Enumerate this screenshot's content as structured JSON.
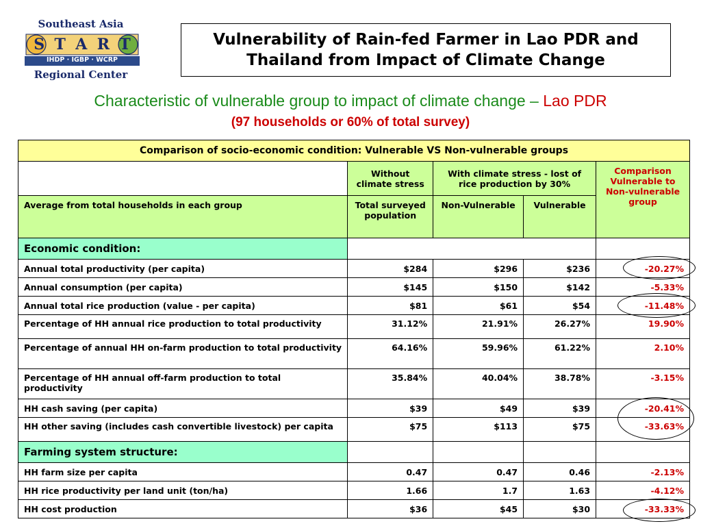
{
  "logo": {
    "line1": "Southeast Asia",
    "letters": [
      "S",
      "T",
      "A",
      "R",
      "T"
    ],
    "line3": "IHDP · IGBP · WCRP",
    "line4": "Regional Center"
  },
  "title": {
    "line1": "Vulnerability of Rain-fed Farmer in Lao PDR and",
    "line2": "Thailand from Impact of Climate Change"
  },
  "subtitle": {
    "green": "Characteristic of vulnerable group to impact of climate change – ",
    "red": "Lao PDR",
    "line2": "(97 households or 60% of total survey)"
  },
  "table": {
    "caption": "Comparison of socio-economic condition: Vulnerable VS Non-vulnerable groups",
    "head1": {
      "without": "Without climate stress",
      "with": "With climate stress - lost of rice production by 30%",
      "comparison": "Comparison Vulnerable to Non-vulnerable group"
    },
    "head2": {
      "label": "Average from total households in each group",
      "total": "Total surveyed population",
      "nonvul": "Non-Vulnerable",
      "vul": "Vulnerable"
    },
    "sections": [
      {
        "title": "Economic condition:",
        "rows": [
          {
            "label": "Annual total productivity (per capita)",
            "total": "$284",
            "nonvul": "$296",
            "vul": "$236",
            "comp": "-20.27%"
          },
          {
            "label": "Annual consumption (per capita)",
            "total": "$145",
            "nonvul": "$150",
            "vul": "$142",
            "comp": "-5.33%"
          },
          {
            "label": "Annual total rice production (value - per capita)",
            "total": "$81",
            "nonvul": "$61",
            "vul": "$54",
            "comp": "-11.48%"
          },
          {
            "label": "Percentage of HH annual rice production to total productivity",
            "total": "31.12%",
            "nonvul": "21.91%",
            "vul": "26.27%",
            "comp": "19.90%"
          },
          {
            "label": "Percentage of annual HH on-farm production to total productivity",
            "total": "64.16%",
            "nonvul": "59.96%",
            "vul": "61.22%",
            "comp": "2.10%"
          },
          {
            "label": "Percentage of HH annual off-farm production to total productivity",
            "total": "35.84%",
            "nonvul": "40.04%",
            "vul": "38.78%",
            "comp": "-3.15%"
          },
          {
            "label": "HH cash saving (per capita)",
            "total": "$39",
            "nonvul": "$49",
            "vul": "$39",
            "comp": "-20.41%"
          },
          {
            "label": "HH other saving (includes cash convertible livestock) per capita",
            "total": "$75",
            "nonvul": "$113",
            "vul": "$75",
            "comp": "-33.63%"
          }
        ]
      },
      {
        "title": "Farming system structure:",
        "rows": [
          {
            "label": "HH farm size per capita",
            "total": "0.47",
            "nonvul": "0.47",
            "vul": "0.46",
            "comp": "-2.13%"
          },
          {
            "label": "HH rice productivity per land unit (ton/ha)",
            "total": "1.66",
            "nonvul": "1.7",
            "vul": "1.63",
            "comp": "-4.12%"
          },
          {
            "label": "HH cost production",
            "total": "$36",
            "nonvul": "$45",
            "vul": "$30",
            "comp": "-33.33%"
          }
        ]
      }
    ]
  },
  "colors": {
    "caption_bg": "#ffff99",
    "header_bg": "#ccff99",
    "section_bg": "#99ffcc",
    "subtitle_green": "#1a8a1a",
    "accent_red": "#cc0000"
  }
}
